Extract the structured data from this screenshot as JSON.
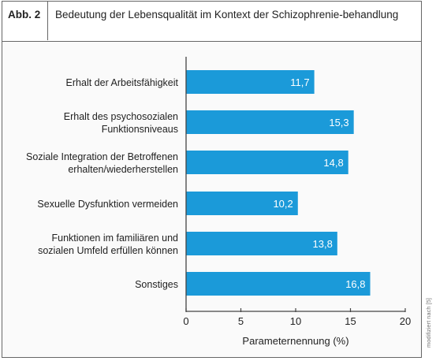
{
  "figure": {
    "label": "Abb. 2",
    "title": "Bedeutung der Lebensqualität im Kontext der Schizophrenie-behandlung",
    "credit": "modifiziert nach [5]"
  },
  "colors": {
    "bar": "#1b9ad9",
    "axis": "#444444",
    "value_label": "#ffffff"
  },
  "chart_data": {
    "type": "bar",
    "orientation": "horizontal",
    "categories": [
      [
        "Erhalt der Arbeitsfähigkeit"
      ],
      [
        "Erhalt des psychosozialen",
        "Funktionsniveaus"
      ],
      [
        "Soziale Integration der Betroffenen",
        "erhalten/wiederherstellen"
      ],
      [
        "Sexuelle Dysfunktion vermeiden"
      ],
      [
        "Funktionen im familiären und",
        "sozialen Umfeld erfüllen können"
      ],
      [
        "Sonstiges"
      ]
    ],
    "values": [
      11.7,
      15.3,
      14.8,
      10.2,
      13.8,
      16.8
    ],
    "value_labels": [
      "11,7",
      "15,3",
      "14,8",
      "10,2",
      "13,8",
      "16,8"
    ],
    "xlabel": "Parameternennung (%)",
    "xlim": [
      0,
      20
    ],
    "xticks": [
      0,
      5,
      10,
      15,
      20
    ],
    "grid": false
  }
}
